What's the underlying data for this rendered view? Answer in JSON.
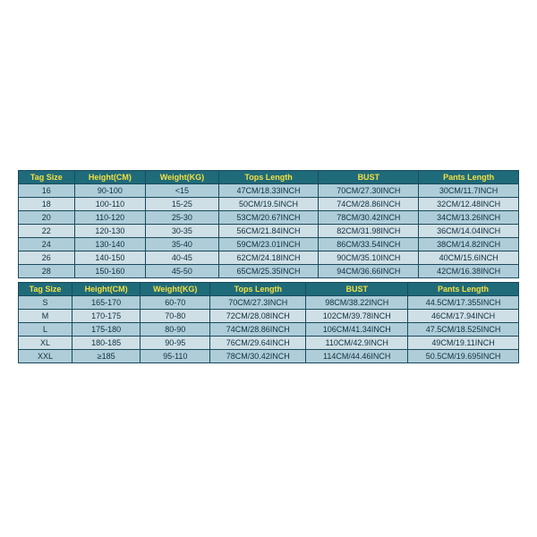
{
  "table1": {
    "headers": [
      "Tag Size",
      "Height(CM)",
      "Weight(KG)",
      "Tops Length",
      "BUST",
      "Pants Length"
    ],
    "header_bg": "#1f6b7a",
    "header_fg": "#f5e040",
    "band_colors": [
      "#aecdd9",
      "#cfdfe6"
    ],
    "border_color": "#1a4a5c",
    "col_widths": [
      "50px",
      "70px",
      "70px",
      "110px",
      "120px",
      "120px"
    ],
    "rows": [
      [
        "16",
        "90-100",
        "<15",
        "47CM/18.33INCH",
        "70CM/27.30INCH",
        "30CM/11.7INCH"
      ],
      [
        "18",
        "100-110",
        "15-25",
        "50CM/19.5INCH",
        "74CM/28.86INCH",
        "32CM/12.48INCH"
      ],
      [
        "20",
        "110-120",
        "25-30",
        "53CM/20.67INCH",
        "78CM/30.42INCH",
        "34CM/13.26INCH"
      ],
      [
        "22",
        "120-130",
        "30-35",
        "56CM/21.84INCH",
        "82CM/31.98INCH",
        "36CM/14.04INCH"
      ],
      [
        "24",
        "130-140",
        "35-40",
        "59CM/23.01INCH",
        "86CM/33.54INCH",
        "38CM/14.82INCH"
      ],
      [
        "26",
        "140-150",
        "40-45",
        "62CM/24.18INCH",
        "90CM/35.10INCH",
        "40CM/15.6INCH"
      ],
      [
        "28",
        "150-160",
        "45-50",
        "65CM/25.35INCH",
        "94CM/36.66INCH",
        "42CM/16.38INCH"
      ]
    ]
  },
  "table2": {
    "headers": [
      "Tag Size",
      "Height(CM)",
      "Weight(KG)",
      "Tops Length",
      "BUST",
      "Pants Length"
    ],
    "header_bg": "#1f6b7a",
    "header_fg": "#f5e040",
    "band_colors": [
      "#aecdd9",
      "#cfdfe6"
    ],
    "border_color": "#1a4a5c",
    "col_widths": [
      "50px",
      "70px",
      "70px",
      "110px",
      "120px",
      "120px"
    ],
    "rows": [
      [
        "S",
        "165-170",
        "60-70",
        "70CM/27.3INCH",
        "98CM/38.22INCH",
        "44.5CM/17.355INCH"
      ],
      [
        "M",
        "170-175",
        "70-80",
        "72CM/28.08INCH",
        "102CM/39.78INCH",
        "46CM/17.94INCH"
      ],
      [
        "L",
        "175-180",
        "80-90",
        "74CM/28.86INCH",
        "106CM/41.34INCH",
        "47.5CM/18.525INCH"
      ],
      [
        "XL",
        "180-185",
        "90-95",
        "76CM/29.64INCH",
        "110CM/42.9INCH",
        "49CM/19.11INCH"
      ],
      [
        "XXL",
        "≥185",
        "95-110",
        "78CM/30.42INCH",
        "114CM/44.46INCH",
        "50.5CM/19.695INCH"
      ]
    ]
  }
}
